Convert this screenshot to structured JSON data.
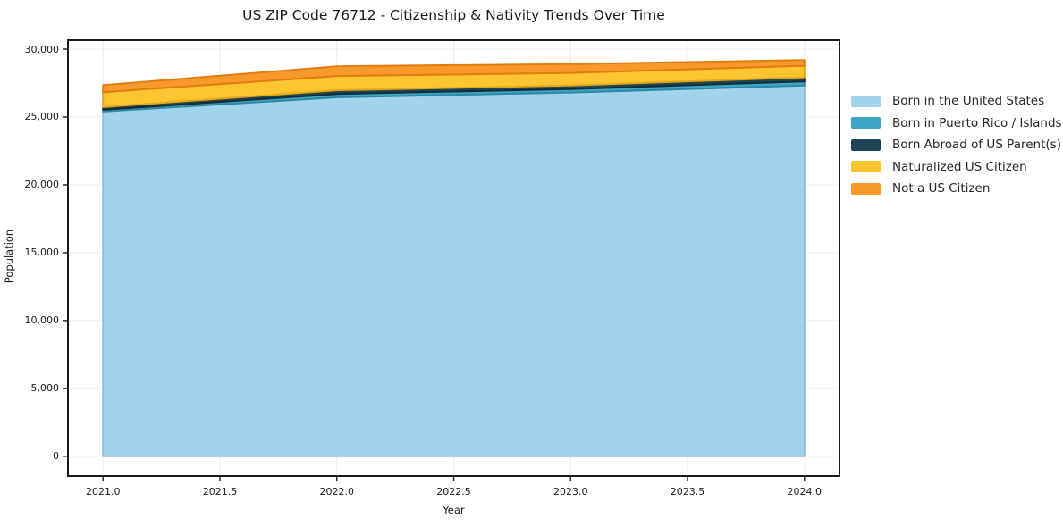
{
  "chart_data": {
    "type": "area",
    "stacked": true,
    "title": "US ZIP Code 76712 - Citizenship & Nativity Trends Over Time",
    "xlabel": "Year",
    "ylabel": "Population",
    "x": [
      2021,
      2022,
      2023,
      2024
    ],
    "series": [
      {
        "name": "Born in the United States",
        "color": "#a3d3ea",
        "edge": "#8ac2dd",
        "values": [
          25400,
          26450,
          26800,
          27320
        ]
      },
      {
        "name": "Born in Puerto Rico / Islands",
        "color": "#3da4c4",
        "edge": "#2e89a6",
        "values": [
          130,
          250,
          260,
          300
        ]
      },
      {
        "name": "Born Abroad of US Parent(s)",
        "color": "#1e4456",
        "edge": "#132d3a",
        "values": [
          200,
          270,
          260,
          300
        ]
      },
      {
        "name": "Naturalized US Citizen",
        "color": "#fcc430",
        "edge": "#e5a713",
        "values": [
          1100,
          1050,
          930,
          860
        ]
      },
      {
        "name": "Not a US Citizen",
        "color": "#f79a2b",
        "edge": "#e27c0e",
        "values": [
          520,
          720,
          650,
          420
        ]
      }
    ],
    "xlim": [
      2020.85,
      2024.15
    ],
    "ylim": [
      -1460,
      30660
    ],
    "grid": true,
    "grid_color": "#ececec",
    "legend_position": "right-outside",
    "axis_color": "#1a1a1a",
    "yticks": {
      "values": [
        0,
        5000,
        10000,
        15000,
        20000,
        25000,
        30000
      ],
      "labels": [
        "0",
        "5,000",
        "10,000",
        "15,000",
        "20,000",
        "25,000",
        "30,000"
      ]
    },
    "xticks": {
      "values": [
        2021.0,
        2021.5,
        2022.0,
        2022.5,
        2023.0,
        2023.5,
        2024.0
      ],
      "labels": [
        "2021.0",
        "2021.5",
        "2022.0",
        "2022.5",
        "2023.0",
        "2023.5",
        "2024.0"
      ]
    }
  }
}
